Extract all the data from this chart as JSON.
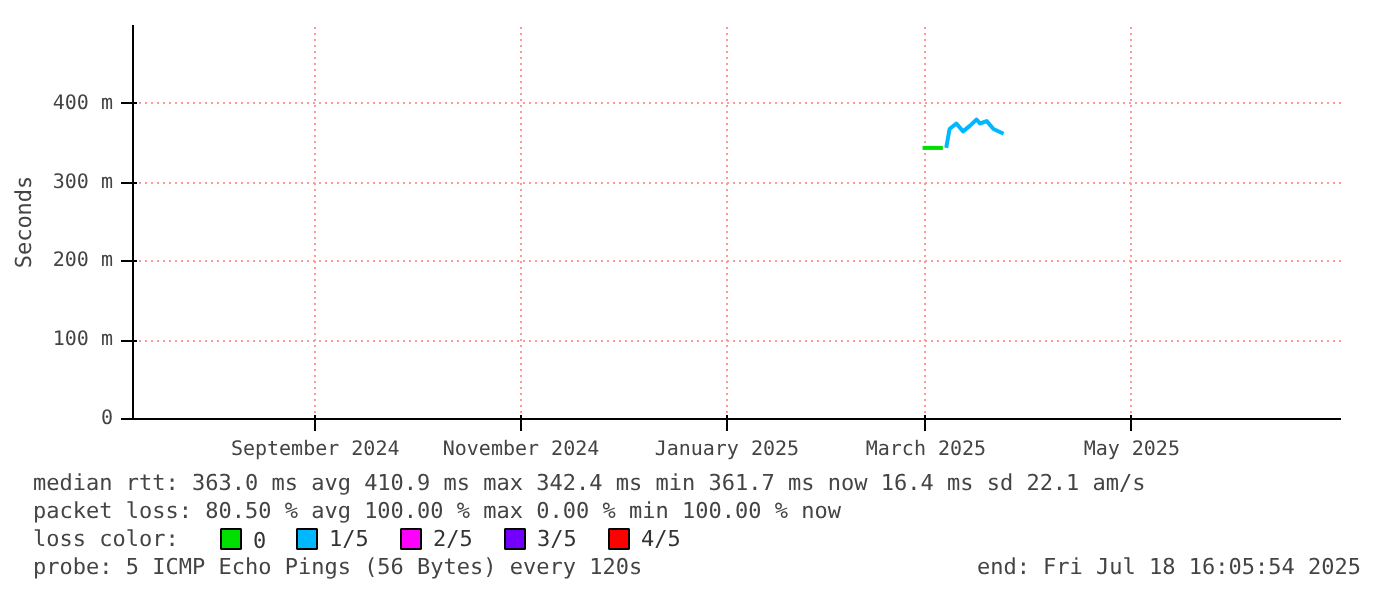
{
  "chart_data": {
    "type": "line",
    "ylabel": "Seconds",
    "xlim": [
      "2024-07-09",
      "2025-07-02"
    ],
    "xticks": [
      {
        "value": "2024-09-01",
        "label": "September 2024"
      },
      {
        "value": "2024-11-01",
        "label": "November 2024"
      },
      {
        "value": "2025-01-01",
        "label": "January 2025"
      },
      {
        "value": "2025-03-01",
        "label": "March 2025"
      },
      {
        "value": "2025-05-01",
        "label": "May 2025"
      }
    ],
    "ylim": [
      0,
      500
    ],
    "yticks": [
      0,
      {
        "value": 100,
        "label": "100 m"
      },
      {
        "value": 200,
        "label": "200 m"
      },
      {
        "value": 300,
        "label": "300 m"
      },
      {
        "value": 400,
        "label": "400 m"
      }
    ],
    "grid": true,
    "legend": "bottom",
    "legend_title": "loss color:",
    "series": [
      {
        "name": "0",
        "color": "#00e000",
        "x": [
          "2025-02-28",
          "2025-03-03",
          "2025-03-06"
        ],
        "values": [
          344,
          344,
          344
        ]
      },
      {
        "name": "1/5",
        "color": "#00b8ff",
        "x": [
          "2025-03-07",
          "2025-03-08",
          "2025-03-10",
          "2025-03-12",
          "2025-03-14",
          "2025-03-16",
          "2025-03-17",
          "2025-03-19",
          "2025-03-21",
          "2025-03-24"
        ],
        "values": [
          344,
          368,
          375,
          365,
          372,
          380,
          375,
          378,
          368,
          362
        ]
      },
      {
        "name": "2/5",
        "color": "#ff00ff"
      },
      {
        "name": "3/5",
        "color": "#7300ff"
      },
      {
        "name": "4/5",
        "color": "#ff0000"
      }
    ],
    "annotations": [
      "median rtt:  363.0 ms avg  410.9 ms max  342.4 ms min  361.7 ms now  16.4 ms sd  22.1   am/s",
      "packet loss: 80.50 % avg  100.00 % max  0.00 % min  100.00 % now",
      "probe:       5 ICMP Echo Pings (56 Bytes) every 120s",
      "end: Fri Jul 18 16:05:54 2025"
    ]
  }
}
